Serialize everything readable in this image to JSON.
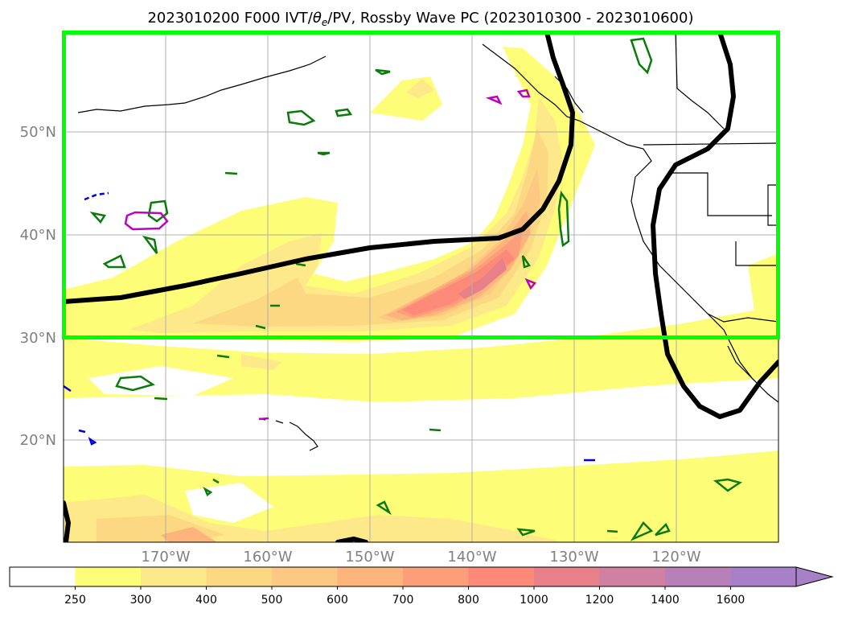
{
  "title": {
    "prefix": "2023010200 F000 IVT/",
    "theta": "θ",
    "theta_sub": "e",
    "suffix": "/PV, Rossby Wave PC (2023010300 - 2023010600)"
  },
  "lat_labels": [
    "50°N",
    "40°N",
    "30°N",
    "20°N"
  ],
  "lon_labels": [
    "170°W",
    "160°W",
    "150°W",
    "140°W",
    "130°W",
    "120°W"
  ],
  "colorbar": {
    "ticks": [
      "250",
      "300",
      "400",
      "500",
      "600",
      "700",
      "800",
      "1000",
      "1200",
      "1400",
      "1600"
    ],
    "colors": [
      "#ffffff",
      "#fdfd78",
      "#fde88a",
      "#fdd882",
      "#fdc882",
      "#fdb47a",
      "#fd9e7a",
      "#fd8a78",
      "#e8808a",
      "#d080a0",
      "#b880b8",
      "#a880c8"
    ]
  },
  "legend_colors": {
    "box": "#00ff00",
    "wave": "#000000",
    "pv_positive": "#0a7a0a",
    "pv_strong": "#c000c0",
    "pv_negative": "#0000e0"
  }
}
